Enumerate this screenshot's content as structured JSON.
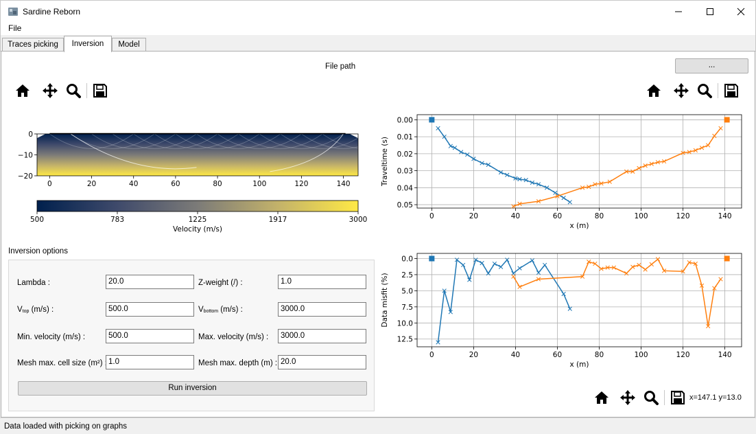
{
  "window": {
    "title": "Sardine Reborn"
  },
  "menu": {
    "file": "File"
  },
  "tabs": [
    {
      "label": "Traces picking",
      "active": false
    },
    {
      "label": "Inversion",
      "active": true
    },
    {
      "label": "Model",
      "active": false
    }
  ],
  "file_picker": {
    "label": "File path",
    "button": "..."
  },
  "toolbar_icons": [
    "home-icon",
    "pan-icon",
    "zoom-icon",
    "save-icon"
  ],
  "coords_readout": "x=147.1 y=13.0",
  "options": {
    "title": "Inversion options",
    "lambda": {
      "label": "Lambda :",
      "value": "20.0"
    },
    "z_weight": {
      "label": "Z-weight (/) :",
      "value": "1.0"
    },
    "v_top": {
      "label_main": "V",
      "label_sub": "top",
      "label_rest": " (m/s) :",
      "value": "500.0"
    },
    "v_bottom": {
      "label_main": "V",
      "label_sub": "bottom",
      "label_rest": " (m/s) :",
      "value": "3000.0"
    },
    "min_velocity": {
      "label": "Min. velocity (m/s) :",
      "value": "500.0"
    },
    "max_velocity": {
      "label": "Max. velocity (m/s) :",
      "value": "3000.0"
    },
    "mesh_cell": {
      "label": "Mesh max. cell size (m²) :",
      "value": "1.0"
    },
    "mesh_depth": {
      "label": "Mesh max. depth (m) :",
      "value": "20.0"
    },
    "run_button": "Run inversion"
  },
  "status": "Data loaded with picking on graphs",
  "colors": {
    "series_blue": "#1f77b4",
    "series_orange": "#ff7f0e",
    "colormap": [
      "#00204d",
      "#3f4a6b",
      "#7c7b78",
      "#c3b26a",
      "#ffe945"
    ]
  },
  "chart_data": [
    {
      "type": "heatmap",
      "title": "",
      "xlabel": "",
      "ylabel": "",
      "xlim": [
        -6,
        147
      ],
      "ylim": [
        -20,
        0
      ],
      "xticks": [
        0,
        20,
        40,
        60,
        80,
        100,
        120,
        140
      ],
      "yticks": [
        0,
        -10,
        -20
      ],
      "colorbar": {
        "label": "Velocity (m/s)",
        "ticks": [
          "500",
          "783",
          "1225",
          "1917",
          "3000"
        ],
        "range": [
          500,
          3000
        ]
      }
    },
    {
      "type": "line",
      "title": "",
      "xlabel": "x (m)",
      "ylabel": "Traveltime (s)",
      "xlim": [
        -7,
        148
      ],
      "ylim": [
        0.052,
        -0.003
      ],
      "y_inverted": true,
      "grid": true,
      "xticks": [
        0,
        20,
        40,
        60,
        80,
        100,
        120,
        140
      ],
      "yticks": [
        "0.00",
        "0.01",
        "0.02",
        "0.03",
        "0.04",
        "0.05"
      ],
      "sources": [
        {
          "x": 0,
          "y": 0,
          "color": "blue"
        },
        {
          "x": 141,
          "y": 0,
          "color": "orange"
        }
      ],
      "series": [
        {
          "x": [
            3,
            6,
            9,
            11,
            14,
            17,
            20,
            24,
            27,
            33,
            36,
            40,
            42,
            45,
            48,
            51,
            55,
            59,
            63,
            66
          ],
          "y": [
            0.005,
            0.01,
            0.0155,
            0.0165,
            0.019,
            0.0205,
            0.023,
            0.0255,
            0.0265,
            0.031,
            0.0325,
            0.0345,
            0.035,
            0.0355,
            0.037,
            0.038,
            0.04,
            0.043,
            0.046,
            0.0485
          ]
        },
        {
          "x": [
            39,
            42,
            51,
            60,
            72,
            75,
            78,
            81,
            85,
            93,
            96,
            99,
            102,
            105,
            108,
            111,
            120,
            123,
            126,
            129,
            132,
            135,
            138
          ],
          "y": [
            0.051,
            0.0495,
            0.048,
            0.045,
            0.04,
            0.0395,
            0.038,
            0.0375,
            0.0365,
            0.0305,
            0.0305,
            0.0285,
            0.027,
            0.026,
            0.025,
            0.0245,
            0.0195,
            0.019,
            0.018,
            0.0165,
            0.015,
            0.0095,
            0.005
          ]
        }
      ]
    },
    {
      "type": "line",
      "title": "",
      "xlabel": "x (m)",
      "ylabel": "Data misfit (%)",
      "xlim": [
        -7,
        148
      ],
      "ylim": [
        13.7,
        -0.8
      ],
      "y_inverted": true,
      "grid": true,
      "xticks": [
        0,
        20,
        40,
        60,
        80,
        100,
        120,
        140
      ],
      "yticks": [
        "0.0",
        "2.5",
        "5.0",
        "7.5",
        "10.0",
        "12.5"
      ],
      "sources": [
        {
          "x": 0,
          "y": 0,
          "color": "blue"
        },
        {
          "x": 141,
          "y": 0,
          "color": "orange"
        }
      ],
      "series": [
        {
          "x": [
            3,
            6,
            9,
            12,
            15,
            18,
            21,
            24,
            27,
            30,
            33,
            36,
            39,
            42,
            48,
            51,
            54,
            63,
            66
          ],
          "y": [
            13.0,
            5.0,
            8.3,
            0.2,
            1.0,
            3.3,
            0.2,
            0.7,
            2.3,
            0.8,
            1.3,
            0.2,
            2.3,
            1.5,
            0.3,
            2.2,
            1.0,
            5.5,
            7.8
          ]
        },
        {
          "x": [
            39,
            42,
            51,
            72,
            75,
            78,
            81,
            84,
            87,
            93,
            96,
            99,
            102,
            105,
            108,
            111,
            120,
            123,
            126,
            129,
            132,
            135,
            138
          ],
          "y": [
            2.8,
            4.4,
            3.2,
            2.8,
            0.5,
            0.8,
            1.6,
            1.4,
            1.4,
            2.3,
            1.3,
            1.0,
            1.7,
            0.9,
            0.1,
            1.9,
            2.0,
            0.6,
            0.8,
            4.2,
            10.5,
            4.6,
            3.2
          ]
        }
      ]
    }
  ]
}
